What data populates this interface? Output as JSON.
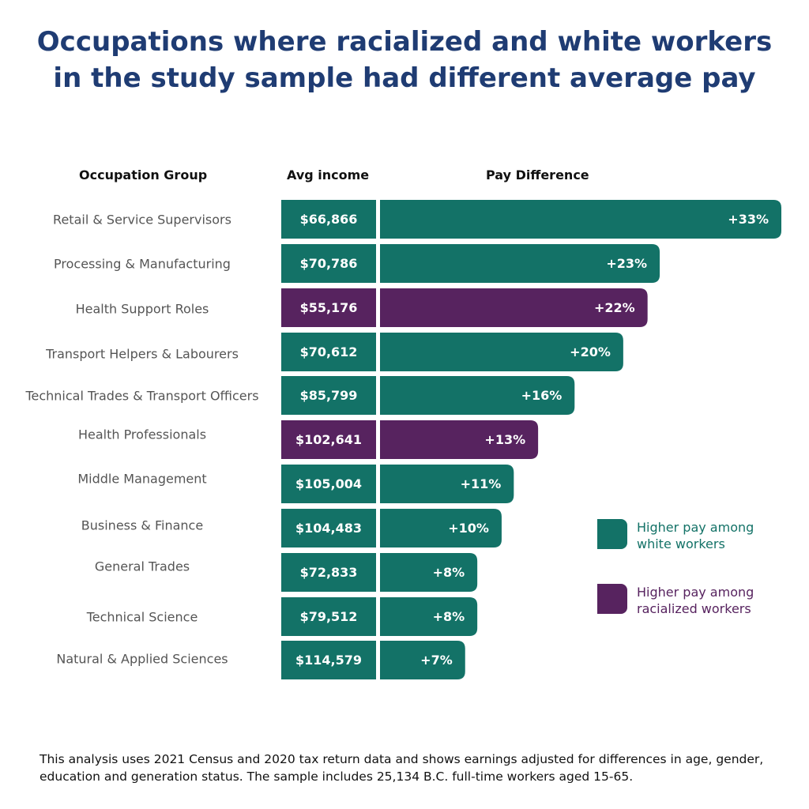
{
  "title": {
    "line1": "Occupations where racialized and white workers",
    "line2": "in the study sample had different average pay"
  },
  "headers": {
    "occupation": "Occupation Group",
    "income": "Avg income",
    "difference": "Pay Difference"
  },
  "colors": {
    "title": "#1f3c73",
    "white_higher": "#137267",
    "racialized_higher": "#57235f",
    "label": "#555555"
  },
  "chart_data": {
    "type": "bar",
    "orientation": "horizontal",
    "title": "Occupations where racialized and white workers in the study sample had different average pay",
    "categories": [
      "Retail & Service Supervisors",
      "Processing & Manufacturing",
      "Health Support Roles",
      "Transport Helpers & Labourers",
      "Technical Trades & Transport Officers",
      "Health Professionals",
      "Middle Management",
      "Business & Finance",
      "General Trades",
      "Technical Science",
      "Natural & Applied Sciences"
    ],
    "avg_income": [
      "$66,866",
      "$70,786",
      "$55,176",
      "$70,612",
      "$85,799",
      "$102,641",
      "$105,004",
      "$104,483",
      "$72,833",
      "$79,512",
      "$114,579"
    ],
    "values": [
      33,
      23,
      22,
      20,
      16,
      13,
      11,
      10,
      8,
      8,
      7
    ],
    "value_labels": [
      "+33%",
      "+23%",
      "+22%",
      "+20%",
      "+16%",
      "+13%",
      "+11%",
      "+10%",
      "+8%",
      "+8%",
      "+7%"
    ],
    "higher_pay_group": [
      "white",
      "white",
      "racialized",
      "white",
      "white",
      "racialized",
      "white",
      "white",
      "white",
      "white",
      "white"
    ],
    "xlim": [
      0,
      33
    ],
    "unit": "%"
  },
  "legend": [
    {
      "key": "white",
      "line1": "Higher pay among",
      "line2": "white workers",
      "color": "#137267"
    },
    {
      "key": "racialized",
      "line1": "Higher pay among",
      "line2": "racialized workers",
      "color": "#57235f"
    }
  ],
  "footnote": "This analysis uses 2021 Census and 2020 tax return data and shows earnings adjusted for differences in age, gender, education and generation status. The sample includes 25,134 B.C. full-time workers aged 15-65."
}
